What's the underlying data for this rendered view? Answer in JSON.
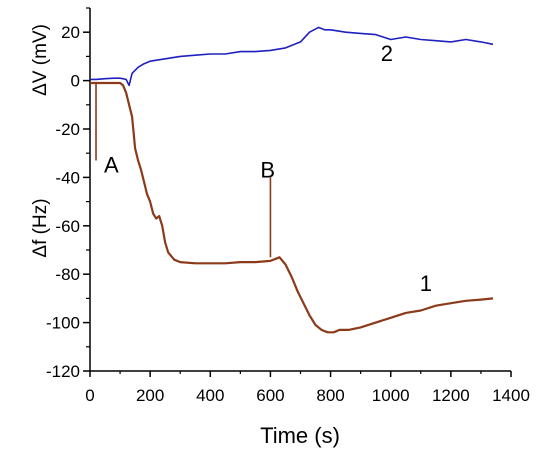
{
  "chart_data": {
    "type": "line",
    "title": "",
    "xlabel": "Time (s)",
    "ylabel_top": "ΔV  (mV)",
    "ylabel_bottom": "Δf (Hz)",
    "xlim": [
      0,
      1400
    ],
    "ylim": [
      -120,
      30
    ],
    "x_ticks": [
      "0",
      "200",
      "400",
      "600",
      "800",
      "1000",
      "1200",
      "1400"
    ],
    "y_ticks": [
      "20",
      "0",
      "-20",
      "-40",
      "-60",
      "-80",
      "-100",
      "-120"
    ],
    "grid": false,
    "annotations": [
      {
        "text": "A",
        "x": 20,
        "y": -33
      },
      {
        "text": "B",
        "x": 600,
        "y": -40
      },
      {
        "text": "1",
        "x": 1130,
        "y": -87
      },
      {
        "text": "2",
        "x": 1000,
        "y": 8
      }
    ],
    "series": [
      {
        "name": "1",
        "color": "#8b3a1a",
        "x": [
          0,
          20,
          40,
          60,
          80,
          100,
          110,
          120,
          130,
          140,
          150,
          160,
          170,
          180,
          190,
          200,
          210,
          220,
          230,
          240,
          250,
          260,
          280,
          300,
          350,
          400,
          450,
          500,
          550,
          600,
          630,
          650,
          670,
          690,
          710,
          730,
          750,
          770,
          790,
          810,
          830,
          860,
          900,
          950,
          1000,
          1050,
          1100,
          1150,
          1200,
          1250,
          1300,
          1340
        ],
        "y": [
          -1,
          -1,
          -1,
          -1,
          -1,
          -1,
          -2,
          -5,
          -10,
          -15,
          -28,
          -33,
          -37,
          -42,
          -47,
          -50,
          -55,
          -57,
          -56,
          -60,
          -67,
          -71,
          -74,
          -75,
          -75.5,
          -75.5,
          -75.5,
          -75,
          -75,
          -74.5,
          -73,
          -76,
          -81,
          -87,
          -92,
          -97,
          -101,
          -103,
          -104,
          -104,
          -103,
          -103,
          -102,
          -100,
          -98,
          -96,
          -95,
          -93,
          -92,
          -91,
          -90.5,
          -90
        ]
      },
      {
        "name": "2",
        "color": "#2020c0",
        "x": [
          0,
          20,
          50,
          80,
          100,
          120,
          130,
          140,
          160,
          180,
          200,
          250,
          300,
          350,
          400,
          450,
          500,
          550,
          600,
          650,
          700,
          730,
          760,
          780,
          800,
          850,
          900,
          950,
          1000,
          1050,
          1100,
          1150,
          1200,
          1250,
          1300,
          1340
        ],
        "y": [
          0.5,
          0.5,
          0.8,
          1,
          1,
          0.5,
          -2,
          3,
          5.5,
          7,
          8,
          9,
          10,
          10.5,
          11,
          11,
          12,
          12,
          12.5,
          13.5,
          16,
          20,
          22,
          21,
          21,
          20,
          19.5,
          19,
          17,
          18,
          17,
          16.5,
          16,
          17,
          16,
          15
        ]
      }
    ],
    "markers": [
      {
        "name": "A",
        "x": 20,
        "y_from": -1,
        "y_to": -33,
        "color": "#8b3a1a"
      },
      {
        "name": "B",
        "x": 600,
        "y_from": -40,
        "y_to": -73,
        "color": "#8b3a1a"
      }
    ]
  }
}
